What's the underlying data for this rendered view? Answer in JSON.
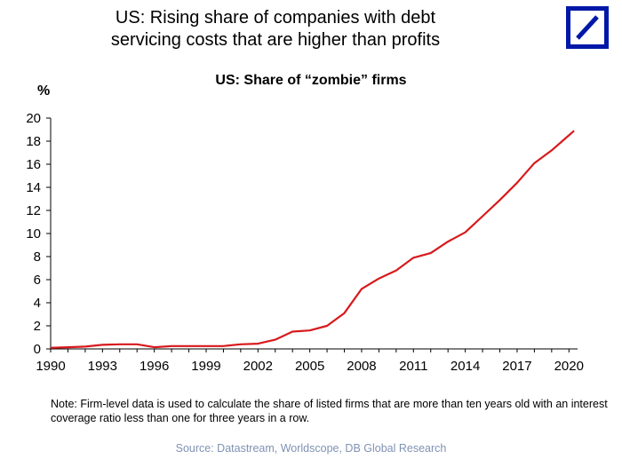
{
  "header": {
    "title_line1": "US: Rising share of companies with debt",
    "title_line2": "servicing costs that are higher than profits",
    "logo_icon": "deutsche-bank-logo-icon",
    "logo_color": "#0018a8"
  },
  "chart_data": {
    "type": "line",
    "title": "US: Share of “zombie” firms",
    "ylabel": "%",
    "xlabel": "",
    "xlim": [
      1990,
      2020.5
    ],
    "ylim": [
      0,
      20
    ],
    "yticks": [
      0,
      2,
      4,
      6,
      8,
      10,
      12,
      14,
      16,
      18,
      20
    ],
    "xticks": [
      1990,
      1993,
      1996,
      1999,
      2002,
      2005,
      2008,
      2011,
      2014,
      2017,
      2020
    ],
    "grid": false,
    "legend": "none",
    "series": [
      {
        "color": "#d7191c",
        "x": [
          1990,
          1991,
          1992,
          1993,
          1994,
          1995,
          1996,
          1997,
          1998,
          1999,
          2000,
          2001,
          2002,
          2003,
          2004,
          2005,
          2006,
          2007,
          2008,
          2009,
          2010,
          2011,
          2012,
          2013,
          2014,
          2015,
          2016,
          2017,
          2018,
          2019,
          2020.3
        ],
        "y": [
          0.1,
          0.15,
          0.2,
          0.35,
          0.4,
          0.4,
          0.15,
          0.25,
          0.25,
          0.25,
          0.25,
          0.4,
          0.45,
          0.8,
          1.5,
          1.6,
          2.0,
          3.1,
          5.2,
          6.1,
          6.8,
          7.9,
          8.3,
          9.3,
          10.1,
          11.5,
          12.9,
          14.4,
          16.1,
          17.2,
          18.9
        ]
      }
    ]
  },
  "footer": {
    "note": "Note: Firm-level data is used to calculate the share of listed firms that are more than ten years old with an interest coverage ratio less than one for three years in a row.",
    "source": "Source: Datastream, Worldscope, DB Global Research"
  }
}
